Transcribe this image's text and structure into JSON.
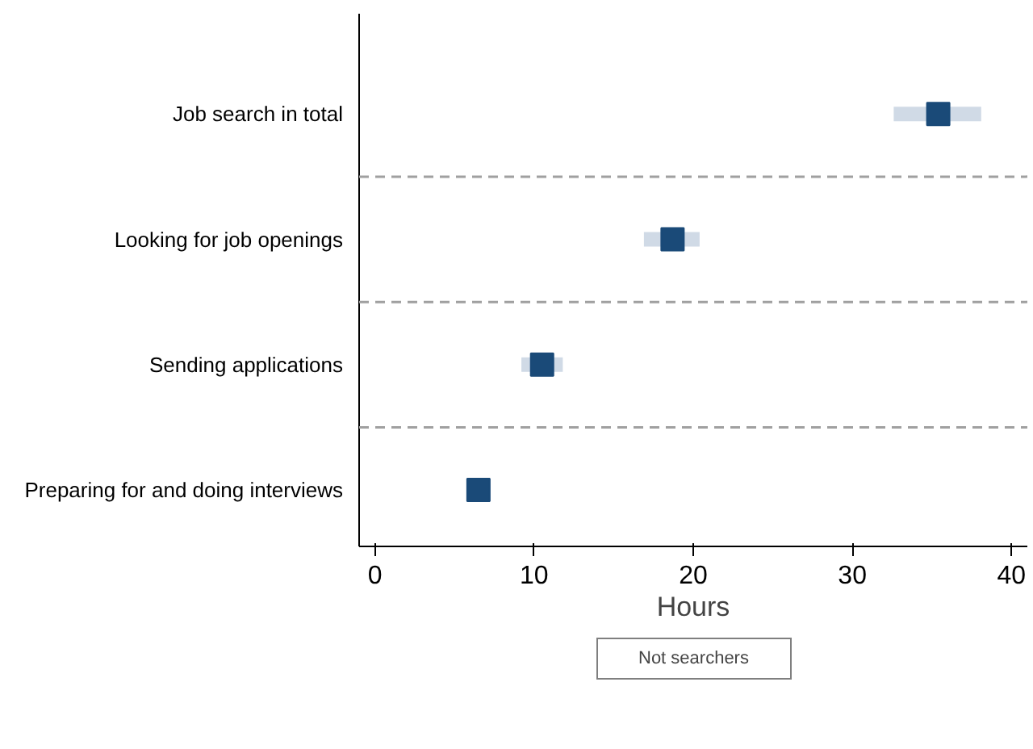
{
  "chart_data": {
    "type": "scatter",
    "orientation": "horizontal",
    "marker": "square",
    "categories": [
      "Job search in total",
      "Looking for job openings",
      "Sending applications",
      "Preparing for and doing interviews"
    ],
    "series": [
      {
        "name": "Not searchers",
        "color": "#1a4a78",
        "values": [
          35.4,
          18.7,
          10.5,
          6.5
        ],
        "errors": [
          [
            32.6,
            38.1
          ],
          [
            16.9,
            20.4
          ],
          [
            9.2,
            11.8
          ],
          null
        ]
      }
    ],
    "xlabel": "Hours",
    "xlim": [
      -1,
      41
    ],
    "xticks": [
      0,
      10,
      20,
      30,
      40
    ],
    "grid": false,
    "legend": "bottom"
  }
}
